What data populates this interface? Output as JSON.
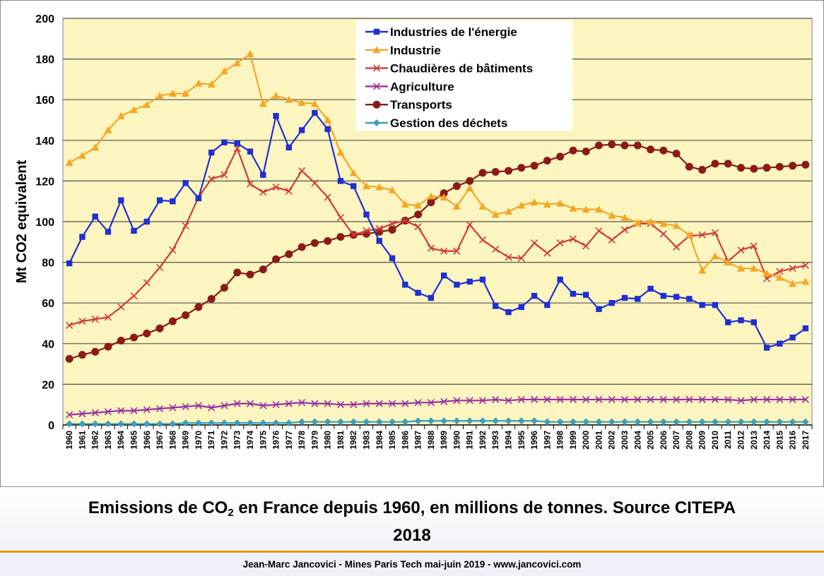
{
  "chart_data": {
    "type": "line",
    "title": "",
    "ylabel": "Mt CO2 equivalent",
    "xlabel": "",
    "ylim": [
      0,
      200
    ],
    "yticks": [
      0,
      20,
      40,
      60,
      80,
      100,
      120,
      140,
      160,
      180,
      200
    ],
    "grid": "horizontal",
    "legend": "top-center",
    "x": [
      1960,
      1961,
      1962,
      1963,
      1964,
      1965,
      1966,
      1967,
      1968,
      1969,
      1970,
      1971,
      1972,
      1973,
      1974,
      1975,
      1976,
      1977,
      1978,
      1979,
      1980,
      1981,
      1982,
      1983,
      1984,
      1985,
      1986,
      1987,
      1988,
      1989,
      1990,
      1991,
      1992,
      1993,
      1994,
      1995,
      1996,
      1997,
      1998,
      1999,
      2000,
      2001,
      2002,
      2003,
      2004,
      2005,
      2006,
      2007,
      2008,
      2009,
      2010,
      2011,
      2012,
      2013,
      2014,
      2015,
      2016,
      2017
    ],
    "series": [
      {
        "name": "Industries de l'énergie",
        "color": "#1f2fd1",
        "marker": "square",
        "values": [
          79.5,
          92.5,
          102.5,
          95,
          110.5,
          95.5,
          100,
          110.5,
          110,
          119,
          111.5,
          134,
          139,
          138.5,
          134.5,
          123,
          152,
          136.5,
          145,
          153.5,
          145.5,
          120,
          117.5,
          103.5,
          90.5,
          82,
          69,
          65,
          62.5,
          73.5,
          69,
          70.5,
          71.5,
          58.5,
          55.5,
          58,
          63.5,
          59,
          71.5,
          64.5,
          64,
          57,
          60,
          62.5,
          62,
          67,
          63.5,
          63,
          62,
          59,
          59,
          50.5,
          51.5,
          50.5,
          38,
          40,
          43,
          47.5
        ]
      },
      {
        "name": "Industrie",
        "color": "#f5a623",
        "marker": "triangle",
        "values": [
          129,
          132.5,
          136.5,
          145,
          152,
          155,
          157.5,
          162,
          163,
          163,
          168,
          167.5,
          174,
          178,
          182.5,
          158,
          162,
          160,
          158.5,
          158,
          150,
          134,
          124,
          117.5,
          117,
          115.5,
          108.5,
          108,
          112.5,
          112,
          107.5,
          116.5,
          107.5,
          103.5,
          105,
          108,
          109.5,
          108.5,
          109,
          106.5,
          106,
          106,
          103,
          102,
          99.5,
          100,
          99,
          98,
          93.5,
          76,
          83,
          80,
          77,
          77,
          74.5,
          72.5,
          69.5,
          70.5
        ]
      },
      {
        "name": "Chaudières de bâtiments",
        "color": "#d03a3a",
        "marker": "x",
        "values": [
          49,
          51,
          52,
          53,
          58,
          63.5,
          70,
          77.5,
          86,
          98,
          112,
          121,
          123,
          136,
          118.5,
          114.5,
          117,
          115,
          125,
          119,
          112,
          102,
          93.5,
          95.5,
          96.5,
          99,
          100.5,
          97.5,
          87,
          85.5,
          85.5,
          98.5,
          91,
          86.5,
          82.5,
          82,
          89.5,
          84.5,
          89.5,
          91.5,
          88,
          95.5,
          91,
          96,
          99,
          99,
          94,
          87.5,
          93,
          93.5,
          94.5,
          80.5,
          86,
          88,
          72,
          75.5,
          77,
          78.5
        ]
      },
      {
        "name": "Agriculture",
        "color": "#9b2d9e",
        "marker": "x",
        "values": [
          5,
          5.5,
          6,
          6.5,
          7,
          7,
          7.5,
          8,
          8.5,
          9,
          9.5,
          8.5,
          9.5,
          10.5,
          10.5,
          9.5,
          10,
          10.5,
          11,
          10.5,
          10.5,
          10,
          10,
          10.5,
          10.5,
          10.5,
          10.5,
          11,
          11,
          11.5,
          12,
          12,
          12,
          12.5,
          12,
          12.5,
          12.5,
          12.5,
          12.5,
          12.5,
          12.5,
          12.5,
          12.5,
          12.5,
          12.5,
          12.5,
          12.5,
          12.5,
          12.5,
          12.5,
          12.5,
          12.5,
          12,
          12.5,
          12.5,
          12.5,
          12.5,
          12.5
        ]
      },
      {
        "name": "Transports",
        "color": "#8b1a1a",
        "marker": "circle",
        "values": [
          32.5,
          34.5,
          36,
          38.5,
          41.5,
          43,
          45,
          47.5,
          51,
          54,
          58,
          62,
          67.5,
          75,
          74,
          76.5,
          81.5,
          84,
          87.5,
          89.5,
          90.5,
          92.5,
          93.5,
          94,
          95,
          96,
          100.5,
          103.5,
          109.5,
          114,
          117.5,
          120,
          124,
          124.5,
          125,
          126.5,
          127.5,
          130,
          132,
          135,
          134.5,
          137.5,
          138,
          137.5,
          137.5,
          135.5,
          135,
          133.5,
          127,
          125.5,
          128.5,
          128.5,
          126.5,
          126,
          126.5,
          127,
          127.5,
          128
        ]
      },
      {
        "name": "Gestion des déchets",
        "color": "#3d9fba",
        "marker": "diamond",
        "values": [
          0.5,
          0.5,
          0.5,
          0.5,
          0.5,
          0.5,
          0.5,
          0.5,
          0.5,
          1,
          1,
          1,
          1,
          1,
          1,
          1,
          1,
          1,
          1.5,
          1.5,
          1.5,
          1.5,
          1.5,
          1.5,
          1.5,
          1.5,
          1.5,
          2,
          2,
          2,
          2,
          2,
          2,
          2,
          2,
          2,
          2,
          1.5,
          1.5,
          1.5,
          1.5,
          1.5,
          1.5,
          1.5,
          1.5,
          1.5,
          1.5,
          1.5,
          1.5,
          1.5,
          1.5,
          1.5,
          1.5,
          1.5,
          1.5,
          1.5,
          1.5,
          1.5
        ]
      }
    ]
  },
  "caption": {
    "line1_prefix": "Emissions de CO",
    "subscript": "2",
    "line1_suffix": " en France depuis 1960, en millions de tonnes. Source CITEPA",
    "line2": "2018"
  },
  "footer": {
    "text": "Jean-Marc Jancovici - Mines Paris Tech mai-juin 2019 - www.jancovici.com"
  },
  "colors": {
    "plot_background": "#fcf5c0",
    "grid": "#505050",
    "divider": "#f0960a"
  }
}
